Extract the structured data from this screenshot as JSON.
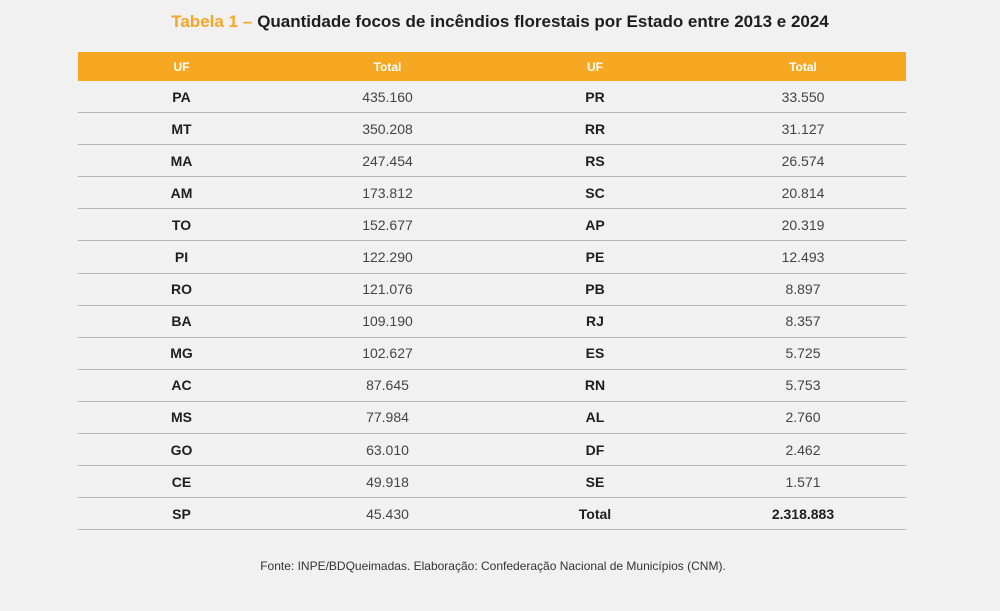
{
  "title": {
    "label": "Tabela 1 –",
    "text": "Quantidade focos de incêndios florestais por Estado entre 2013 e 2024"
  },
  "table": {
    "header": [
      "UF",
      "Total",
      "UF",
      "Total"
    ],
    "rows": [
      [
        "PA",
        "435.160",
        "PR",
        "33.550"
      ],
      [
        "MT",
        "350.208",
        "RR",
        "31.127"
      ],
      [
        "MA",
        "247.454",
        "RS",
        "26.574"
      ],
      [
        "AM",
        "173.812",
        "SC",
        "20.814"
      ],
      [
        "TO",
        "152.677",
        "AP",
        "20.319"
      ],
      [
        "PI",
        "122.290",
        "PE",
        "12.493"
      ],
      [
        "RO",
        "121.076",
        "PB",
        "8.897"
      ],
      [
        "BA",
        "109.190",
        "RJ",
        "8.357"
      ],
      [
        "MG",
        "102.627",
        "ES",
        "5.725"
      ],
      [
        "AC",
        "87.645",
        "RN",
        "5.753"
      ],
      [
        "MS",
        "77.984",
        "AL",
        "2.760"
      ],
      [
        "GO",
        "63.010",
        "DF",
        "2.462"
      ],
      [
        "CE",
        "49.918",
        "SE",
        "1.571"
      ],
      [
        "SP",
        "45.430",
        "Total",
        "2.318.883"
      ]
    ]
  },
  "source": "Fonte: INPE/BDQueimadas. Elaboração: Confederação Nacional de Municípios (CNM)."
}
